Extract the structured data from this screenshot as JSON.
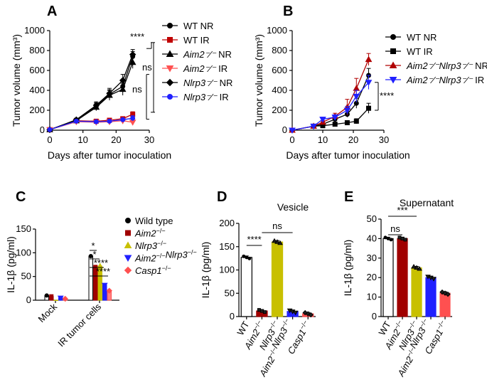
{
  "panels": [
    {
      "letter": "A",
      "type": "line",
      "ylabel": "Tumor volume (mm³)",
      "xlabel": "Days after tumor inoculation",
      "xticks": [
        0,
        10,
        20,
        30
      ],
      "yticks": [
        0,
        200,
        400,
        600,
        800,
        1000
      ],
      "xlim": [
        0,
        30
      ],
      "ylim": [
        0,
        1000
      ],
      "x": [
        0,
        8,
        14,
        18,
        22,
        25
      ],
      "series": [
        {
          "name": "WT NR",
          "name_italic": "",
          "name_rest": "WT NR",
          "marker": "circle",
          "color": "#000000",
          "values": [
            5,
            100,
            240,
            360,
            440,
            740
          ],
          "err": [
            5,
            15,
            35,
            45,
            60,
            50
          ]
        },
        {
          "name": "WT IR",
          "name_italic": "",
          "name_rest": "WT IR",
          "marker": "square",
          "color": "#c00000",
          "values": [
            5,
            95,
            90,
            100,
            115,
            160
          ],
          "err": [
            5,
            15,
            12,
            12,
            15,
            25
          ]
        },
        {
          "name": "Aim2−/− NR",
          "name_italic": "Aim2⁻⁄⁻",
          "name_rest": " NR",
          "marker": "triangle",
          "color": "#000000",
          "values": [
            5,
            95,
            230,
            350,
            410,
            680
          ],
          "err": [
            5,
            15,
            35,
            50,
            60,
            60
          ]
        },
        {
          "name": "Aim2−/− IR",
          "name_italic": "Aim2⁻⁄⁻",
          "name_rest": " IR",
          "marker": "triangle-down",
          "color": "#ff5050",
          "values": [
            5,
            85,
            80,
            85,
            95,
            80
          ],
          "err": [
            5,
            15,
            12,
            15,
            20,
            30
          ]
        },
        {
          "name": "Nlrp3−/− NR",
          "name_italic": "Nlrp3⁻⁄⁻",
          "name_rest": " NR",
          "marker": "diamond",
          "color": "#000000",
          "values": [
            5,
            105,
            250,
            370,
            500,
            760
          ],
          "err": [
            5,
            15,
            35,
            50,
            60,
            50
          ]
        },
        {
          "name": "Nlrp3−/− IR",
          "name_italic": "Nlrp3⁻⁄⁻",
          "name_rest": " IR",
          "marker": "circle",
          "color": "#2020ff",
          "values": [
            5,
            90,
            85,
            90,
            105,
            120
          ],
          "err": [
            5,
            15,
            12,
            15,
            15,
            25
          ]
        }
      ],
      "annotations": [
        "****",
        "ns",
        "ns"
      ]
    },
    {
      "letter": "B",
      "type": "line",
      "ylabel": "Tumor volume (mm³)",
      "xlabel": "Days after tumor inoculation",
      "xticks": [
        0,
        10,
        20,
        30
      ],
      "yticks": [
        0,
        200,
        400,
        600,
        800,
        1000
      ],
      "xlim": [
        0,
        30
      ],
      "ylim": [
        0,
        1000
      ],
      "x": [
        0,
        7,
        10,
        14,
        18,
        21,
        25
      ],
      "series": [
        {
          "name": "WT NR",
          "name_italic": "",
          "name_rest": "WT NR",
          "marker": "circle",
          "color": "#000000",
          "values": [
            0,
            40,
            60,
            110,
            160,
            270,
            550
          ],
          "err": [
            0,
            10,
            10,
            20,
            30,
            50,
            70
          ]
        },
        {
          "name": "WT IR",
          "name_italic": "",
          "name_rest": "WT IR",
          "marker": "square",
          "color": "#000000",
          "values": [
            0,
            40,
            45,
            60,
            75,
            90,
            220
          ],
          "err": [
            0,
            10,
            10,
            15,
            20,
            25,
            50
          ]
        },
        {
          "name": "Aim2−/−Nlrp3−/− NR",
          "name_italic": "Aim2⁻⁄⁻Nlrp3⁻⁄⁻",
          "name_rest": " NR",
          "marker": "triangle",
          "color": "#b00000",
          "values": [
            0,
            40,
            80,
            140,
            230,
            420,
            710
          ],
          "err": [
            0,
            10,
            15,
            30,
            80,
            100,
            60
          ]
        },
        {
          "name": "Aim2−/−Nlrp3−/− IR",
          "name_italic": "Aim2⁻⁄⁻Nlrp3⁻⁄⁻",
          "name_rest": " IR",
          "marker": "triangle-down",
          "color": "#2020ff",
          "values": [
            0,
            40,
            110,
            130,
            200,
            340,
            480
          ],
          "err": [
            0,
            10,
            20,
            25,
            40,
            60,
            70
          ]
        }
      ],
      "annotations": [
        "****"
      ]
    },
    {
      "letter": "C",
      "type": "bar",
      "ylabel": "IL-1β (pg/ml)",
      "categories": [
        "Mock",
        "IR tumor cells"
      ],
      "yticks": [
        0,
        50,
        100,
        150
      ],
      "ylim": [
        0,
        150
      ],
      "series": [
        {
          "name": "Wild type",
          "italic": false,
          "color": "#000000",
          "fill": "#ffffff",
          "marker": "circle",
          "values": [
            10,
            93
          ]
        },
        {
          "name": "Aim2−/−",
          "label_italic": "Aim2",
          "label_sup": "−/−",
          "italic": true,
          "color": "#a00000",
          "fill": "#a00000",
          "marker": "square",
          "values": [
            8,
            70
          ]
        },
        {
          "name": "Nlrp3−/−",
          "label_italic": "Nlrp3",
          "label_sup": "−/−",
          "italic": true,
          "color": "#c8c000",
          "fill": "#c8c000",
          "marker": "triangle",
          "values": [
            0,
            72
          ]
        },
        {
          "name": "Aim2−/−Nlrp3−/−",
          "label_italic": "Aim2⁻⁄⁻Nlrp3",
          "label_sup": "−/−",
          "italic": true,
          "color": "#2020ff",
          "fill": "#2020ff",
          "marker": "triangle-down",
          "values": [
            5,
            32
          ]
        },
        {
          "name": "Casp1−/−",
          "label_italic": "Casp1",
          "label_sup": "−/−",
          "italic": true,
          "color": "#ff5050",
          "fill": "#ff8080",
          "marker": "diamond",
          "values": [
            3,
            20
          ]
        }
      ],
      "annotations": [
        "*",
        "*",
        "****",
        "****"
      ]
    },
    {
      "letter": "D",
      "type": "bar",
      "title": "Vesicle",
      "ylabel": "IL-1β (pg/ml)",
      "categories": [
        "WT",
        "Aim2−/−",
        "Nlrp3−/−",
        "Aim2−/−Nlrp3−/−",
        "Casp1−/−"
      ],
      "yticks": [
        0,
        50,
        100,
        150,
        200
      ],
      "ylim": [
        0,
        200
      ],
      "values": [
        127,
        12,
        160,
        11,
        6
      ],
      "colors": [
        "#ffffff",
        "#a00000",
        "#c8c000",
        "#2020ff",
        "#ff5050"
      ],
      "annotations": [
        "****",
        "ns"
      ]
    },
    {
      "letter": "E",
      "type": "bar",
      "title": "Supernatant",
      "ylabel": "IL-1β (pg/ml)",
      "categories": [
        "WT",
        "Aim2−/−",
        "Nlrp3−/−",
        "Aim2−/−Nlrp3−/−",
        "Casp1−/−"
      ],
      "yticks": [
        0,
        10,
        20,
        30,
        40,
        50
      ],
      "ylim": [
        0,
        50
      ],
      "values": [
        40,
        40,
        25,
        20,
        12
      ],
      "colors": [
        "#ffffff",
        "#a00000",
        "#c8c000",
        "#2020ff",
        "#ff5050"
      ],
      "annotations": [
        "ns",
        "***"
      ]
    }
  ],
  "chart_data": [
    {
      "type": "line",
      "panel": "A",
      "xlabel": "Days after tumor inoculation",
      "ylabel": "Tumor volume (mm³)",
      "xlim": [
        0,
        30
      ],
      "ylim": [
        0,
        1000
      ],
      "x": [
        0,
        8,
        14,
        18,
        22,
        25
      ],
      "series": [
        {
          "name": "WT NR",
          "values": [
            5,
            100,
            240,
            360,
            440,
            740
          ]
        },
        {
          "name": "WT IR",
          "values": [
            5,
            95,
            90,
            100,
            115,
            160
          ]
        },
        {
          "name": "Aim2−/− NR",
          "values": [
            5,
            95,
            230,
            350,
            410,
            680
          ]
        },
        {
          "name": "Aim2−/− IR",
          "values": [
            5,
            85,
            80,
            85,
            95,
            80
          ]
        },
        {
          "name": "Nlrp3−/− NR",
          "values": [
            5,
            105,
            250,
            370,
            500,
            760
          ]
        },
        {
          "name": "Nlrp3−/− IR",
          "values": [
            5,
            90,
            85,
            90,
            105,
            120
          ]
        }
      ]
    },
    {
      "type": "line",
      "panel": "B",
      "xlabel": "Days after tumor inoculation",
      "ylabel": "Tumor volume (mm³)",
      "xlim": [
        0,
        30
      ],
      "ylim": [
        0,
        1000
      ],
      "x": [
        0,
        7,
        10,
        14,
        18,
        21,
        25
      ],
      "series": [
        {
          "name": "WT NR",
          "values": [
            0,
            40,
            60,
            110,
            160,
            270,
            550
          ]
        },
        {
          "name": "WT IR",
          "values": [
            0,
            40,
            45,
            60,
            75,
            90,
            220
          ]
        },
        {
          "name": "Aim2−/−Nlrp3−/− NR",
          "values": [
            0,
            40,
            80,
            140,
            230,
            420,
            710
          ]
        },
        {
          "name": "Aim2−/−Nlrp3−/− IR",
          "values": [
            0,
            40,
            110,
            130,
            200,
            340,
            480
          ]
        }
      ]
    },
    {
      "type": "bar",
      "panel": "C",
      "ylabel": "IL-1β (pg/ml)",
      "ylim": [
        0,
        150
      ],
      "categories": [
        "Mock",
        "IR tumor cells"
      ],
      "series": [
        {
          "name": "Wild type",
          "values": [
            10,
            93
          ]
        },
        {
          "name": "Aim2−/−",
          "values": [
            8,
            70
          ]
        },
        {
          "name": "Nlrp3−/−",
          "values": [
            0,
            72
          ]
        },
        {
          "name": "Aim2−/−Nlrp3−/−",
          "values": [
            5,
            32
          ]
        },
        {
          "name": "Casp1−/−",
          "values": [
            3,
            20
          ]
        }
      ]
    },
    {
      "type": "bar",
      "panel": "D",
      "title": "Vesicle",
      "ylabel": "IL-1β (pg/ml)",
      "ylim": [
        0,
        200
      ],
      "categories": [
        "WT",
        "Aim2−/−",
        "Nlrp3−/−",
        "Aim2−/−Nlrp3−/−",
        "Casp1−/−"
      ],
      "values": [
        127,
        12,
        160,
        11,
        6
      ]
    },
    {
      "type": "bar",
      "panel": "E",
      "title": "Supernatant",
      "ylabel": "IL-1β (pg/ml)",
      "ylim": [
        0,
        50
      ],
      "categories": [
        "WT",
        "Aim2−/−",
        "Nlrp3−/−",
        "Aim2−/−Nlrp3−/−",
        "Casp1−/−"
      ],
      "values": [
        40,
        40,
        25,
        20,
        12
      ]
    }
  ]
}
